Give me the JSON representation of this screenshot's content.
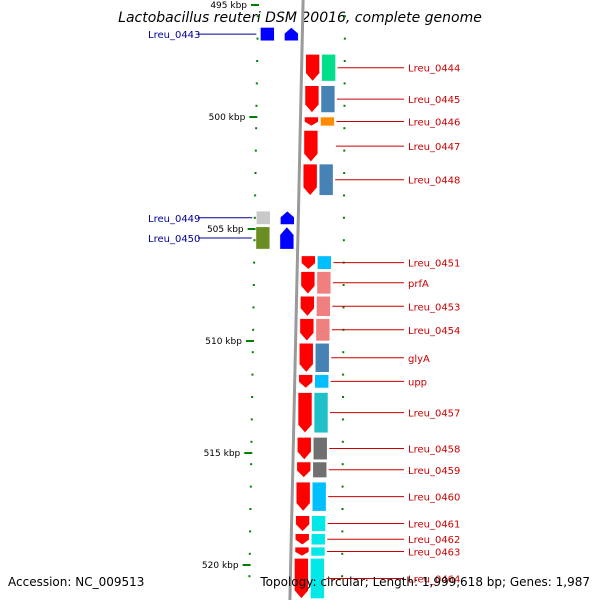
{
  "title": "Lactobacillus reuteri DSM 20016, complete genome",
  "footer": {
    "accession": "Accession: NC_009513",
    "summary": "Topology: circular; Length: 1,999,618 bp; Genes: 1,987"
  },
  "colors": {
    "forward_gene": "#ff0000",
    "reverse_gene": "#0000ff",
    "forward_label": "#cc0000",
    "reverse_label": "#000099",
    "tick": "#008000",
    "backbone": "#9a9a9a"
  },
  "axis": {
    "unit": "kbp",
    "ticks": [
      {
        "label": "495 kbp",
        "pos": 495
      },
      {
        "label": "500 kbp",
        "pos": 500
      },
      {
        "label": "505 kbp",
        "pos": 505
      },
      {
        "label": "510 kbp",
        "pos": 510
      },
      {
        "label": "515 kbp",
        "pos": 515
      },
      {
        "label": "520 kbp",
        "pos": 520
      }
    ]
  },
  "genes": [
    {
      "name": "Lreu_0443",
      "strand": "-",
      "start": 496.0,
      "end": 496.6,
      "cog": "#0000ff"
    },
    {
      "name": "Lreu_0444",
      "strand": "+",
      "start": 497.2,
      "end": 498.4,
      "cog": "#00e08a"
    },
    {
      "name": "Lreu_0445",
      "strand": "+",
      "start": 498.6,
      "end": 499.8,
      "cog": "#4682b4"
    },
    {
      "name": "Lreu_0446",
      "strand": "+",
      "start": 500.0,
      "end": 500.4,
      "cog": "#ff8c00"
    },
    {
      "name": "Lreu_0447",
      "strand": "+",
      "start": 500.6,
      "end": 502.0,
      "cog": "#ffffff"
    },
    {
      "name": "Lreu_0448",
      "strand": "+",
      "start": 502.1,
      "end": 503.5,
      "cog": "#4682b4"
    },
    {
      "name": "Lreu_0449",
      "strand": "-",
      "start": 504.2,
      "end": 504.8,
      "cog": "#c8c8c8"
    },
    {
      "name": "Lreu_0450",
      "strand": "-",
      "start": 504.9,
      "end": 505.9,
      "cog": "#6b8e23"
    },
    {
      "name": "Lreu_0451",
      "strand": "+",
      "start": 506.2,
      "end": 506.8,
      "cog": "#00bfff"
    },
    {
      "name": "prfA",
      "strand": "+",
      "start": 506.9,
      "end": 507.9,
      "cog": "#f08080"
    },
    {
      "name": "Lreu_0453",
      "strand": "+",
      "start": 508.0,
      "end": 508.9,
      "cog": "#f08080"
    },
    {
      "name": "Lreu_0454",
      "strand": "+",
      "start": 509.0,
      "end": 510.0,
      "cog": "#f08080"
    },
    {
      "name": "glyA",
      "strand": "+",
      "start": 510.1,
      "end": 511.4,
      "cog": "#4682b4"
    },
    {
      "name": "upp",
      "strand": "+",
      "start": 511.5,
      "end": 512.1,
      "cog": "#00bfff"
    },
    {
      "name": "Lreu_0457",
      "strand": "+",
      "start": 512.3,
      "end": 514.1,
      "cog": "#20c0c8"
    },
    {
      "name": "Lreu_0458",
      "strand": "+",
      "start": 514.3,
      "end": 515.3,
      "cog": "#707070"
    },
    {
      "name": "Lreu_0459",
      "strand": "+",
      "start": 515.4,
      "end": 516.1,
      "cog": "#707070"
    },
    {
      "name": "Lreu_0460",
      "strand": "+",
      "start": 516.3,
      "end": 517.6,
      "cog": "#00bfff"
    },
    {
      "name": "Lreu_0461",
      "strand": "+",
      "start": 517.8,
      "end": 518.5,
      "cog": "#00e8e8"
    },
    {
      "name": "Lreu_0462",
      "strand": "+",
      "start": 518.6,
      "end": 519.1,
      "cog": "#00e8e8"
    },
    {
      "name": "Lreu_0463",
      "strand": "+",
      "start": 519.2,
      "end": 519.6,
      "cog": "#00e8e8"
    },
    {
      "name": "Lreu_0464",
      "strand": "+",
      "start": 519.7,
      "end": 521.5,
      "cog": "#00e8e8"
    }
  ]
}
